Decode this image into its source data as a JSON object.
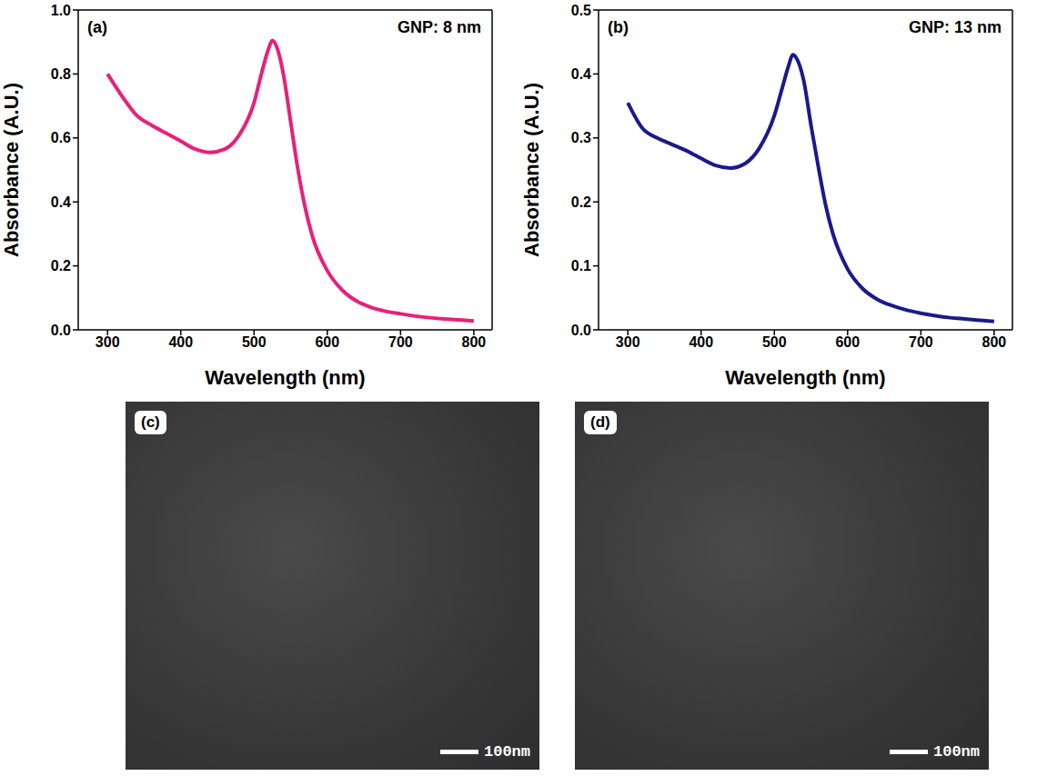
{
  "chart_data": [
    {
      "type": "line",
      "panel_label": "(a)",
      "annotation": "GNP: 8 nm",
      "x_label": "Wavelength (nm)",
      "y_label": "Absorbance (A.U.)",
      "xlim": [
        260,
        825
      ],
      "xticks": [
        300,
        400,
        500,
        600,
        700,
        800
      ],
      "ylim": [
        0,
        1.0
      ],
      "yticks": [
        {
          "value": 0,
          "label": "0.0"
        },
        0.2,
        0.4,
        0.6,
        0.8,
        {
          "value": 1.0,
          "label": "1.0"
        }
      ],
      "grid": false,
      "x": [
        300,
        320,
        340,
        360,
        380,
        400,
        420,
        440,
        460,
        480,
        500,
        510,
        520,
        525,
        530,
        540,
        550,
        560,
        570,
        580,
        600,
        620,
        640,
        660,
        680,
        700,
        720,
        740,
        760,
        780,
        800
      ],
      "series": [
        {
          "name": "GNP: 8 nm",
          "color": "#e8207a",
          "values": [
            0.8,
            0.73,
            0.67,
            0.64,
            0.615,
            0.59,
            0.565,
            0.555,
            0.565,
            0.61,
            0.71,
            0.8,
            0.88,
            0.905,
            0.89,
            0.8,
            0.65,
            0.5,
            0.38,
            0.29,
            0.185,
            0.125,
            0.09,
            0.07,
            0.058,
            0.05,
            0.043,
            0.038,
            0.034,
            0.031,
            0.028
          ]
        }
      ]
    },
    {
      "type": "line",
      "panel_label": "(b)",
      "annotation": "GNP: 13 nm",
      "x_label": "Wavelength (nm)",
      "y_label": "Absorbance (A.U.)",
      "xlim": [
        260,
        825
      ],
      "xticks": [
        300,
        400,
        500,
        600,
        700,
        800
      ],
      "ylim": [
        0,
        0.5
      ],
      "yticks": [
        {
          "value": 0,
          "label": "0.0"
        },
        0.1,
        0.2,
        0.3,
        0.4,
        0.5
      ],
      "grid": false,
      "x": [
        300,
        320,
        340,
        360,
        380,
        400,
        420,
        440,
        460,
        480,
        500,
        510,
        520,
        525,
        530,
        540,
        550,
        560,
        570,
        580,
        600,
        620,
        640,
        660,
        680,
        700,
        720,
        740,
        760,
        780,
        800
      ],
      "series": [
        {
          "name": "GNP: 13 nm",
          "color": "#1a1a8c",
          "values": [
            0.355,
            0.315,
            0.3,
            0.29,
            0.28,
            0.268,
            0.257,
            0.253,
            0.26,
            0.285,
            0.335,
            0.375,
            0.415,
            0.43,
            0.425,
            0.39,
            0.32,
            0.255,
            0.195,
            0.15,
            0.095,
            0.065,
            0.048,
            0.038,
            0.031,
            0.026,
            0.022,
            0.019,
            0.017,
            0.015,
            0.013
          ]
        }
      ]
    }
  ],
  "images": [
    {
      "panel_label": "(c)",
      "scale_bar": "100nm"
    },
    {
      "panel_label": "(d)",
      "scale_bar": "100nm"
    }
  ]
}
